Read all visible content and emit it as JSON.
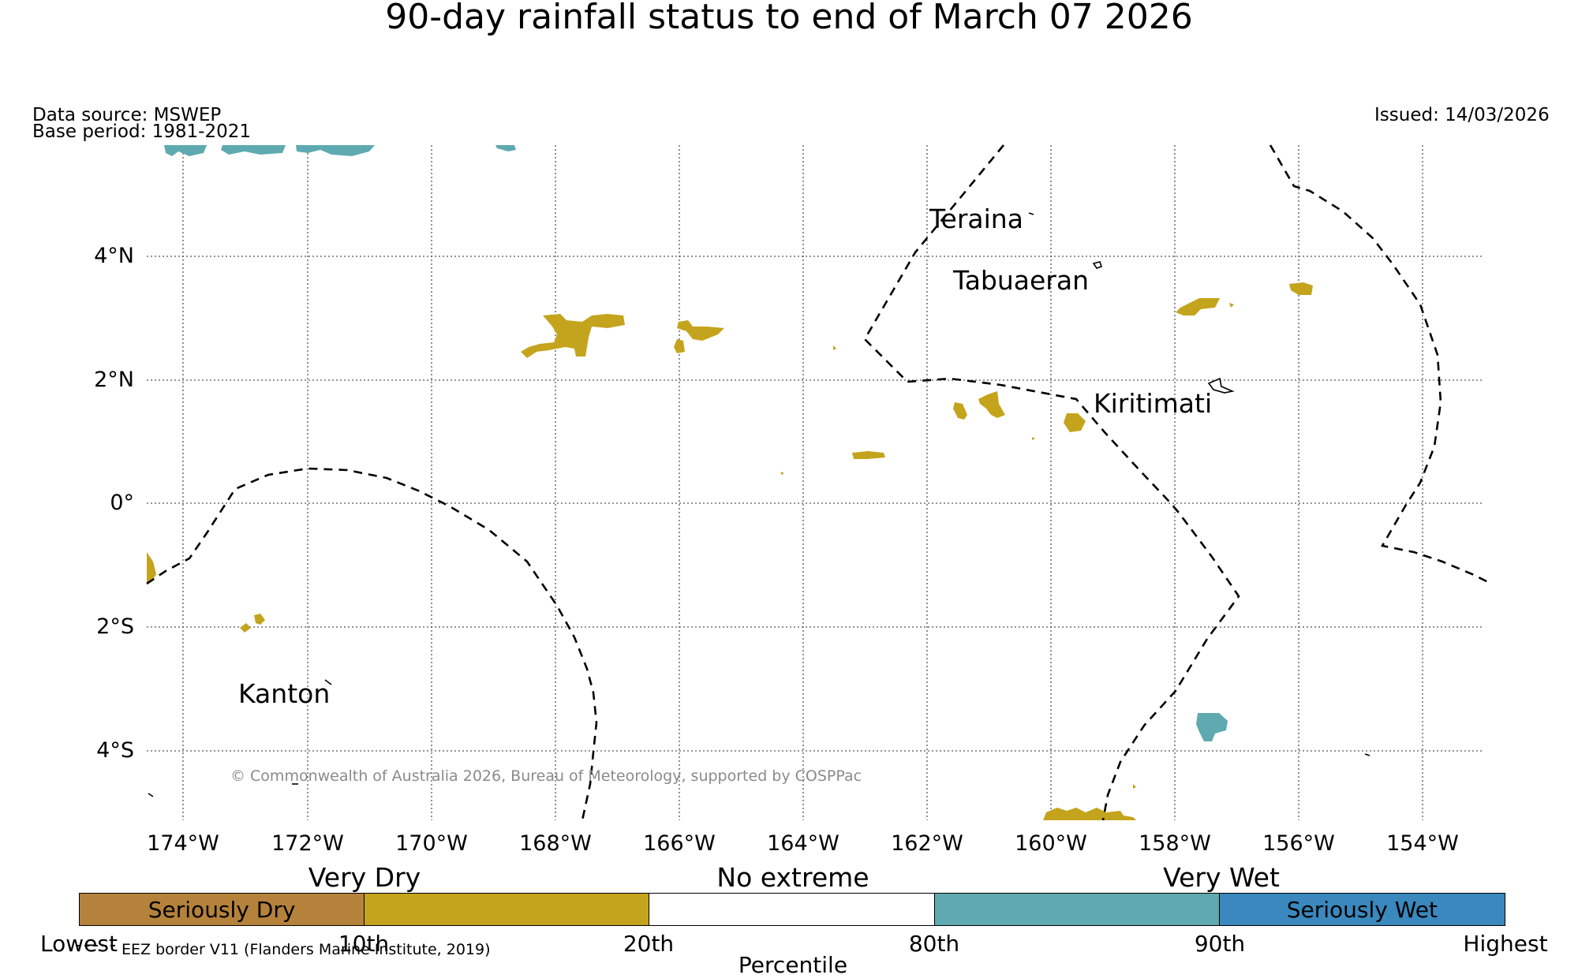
{
  "title": "90-day rainfall status to end of March 07 2026",
  "data_source": "Data source: MSWEP",
  "base_period": "Base period: 1981-2021",
  "issued": "Issued: 14/03/2026",
  "lat_labels": [
    "4°N",
    "2°N",
    "0°",
    "2°S",
    "4°S"
  ],
  "lon_labels": [
    "174°W",
    "172°W",
    "170°W",
    "168°W",
    "166°W",
    "164°W",
    "162°W",
    "160°W",
    "158°W",
    "156°W",
    "154°W"
  ],
  "places": {
    "teraina": "Teraina",
    "tabuaeran": "Tabuaeran",
    "kiritimati": "Kiritimati",
    "kanton": "Kanton"
  },
  "copyright": "© Commonwealth of Australia 2026, Bureau of Meteorology, supported by COSPPac",
  "legend": {
    "group_very_dry": "Very Dry",
    "group_no_extreme": "No extreme",
    "group_very_wet": "Very Wet",
    "segments": [
      {
        "label": "Seriously Dry",
        "color": "#b5823b"
      },
      {
        "label": "",
        "color": "#c4a41c"
      },
      {
        "label": "",
        "color": "#ffffff"
      },
      {
        "label": "",
        "color": "#5eaab0"
      },
      {
        "label": "Seriously Wet",
        "color": "#3a88bd"
      }
    ],
    "ticks": [
      "Lowest",
      "10th",
      "20th",
      "80th",
      "90th",
      "Highest"
    ],
    "axis_label": "Percentile",
    "eez_note": "EEZ border V11 (Flanders Marine Institute, 2019)"
  },
  "colors": {
    "very_dry": "#c4a41c",
    "very_wet": "#5eaab0",
    "seriously_dry": "#b5823b",
    "seriously_wet": "#3a88bd"
  }
}
